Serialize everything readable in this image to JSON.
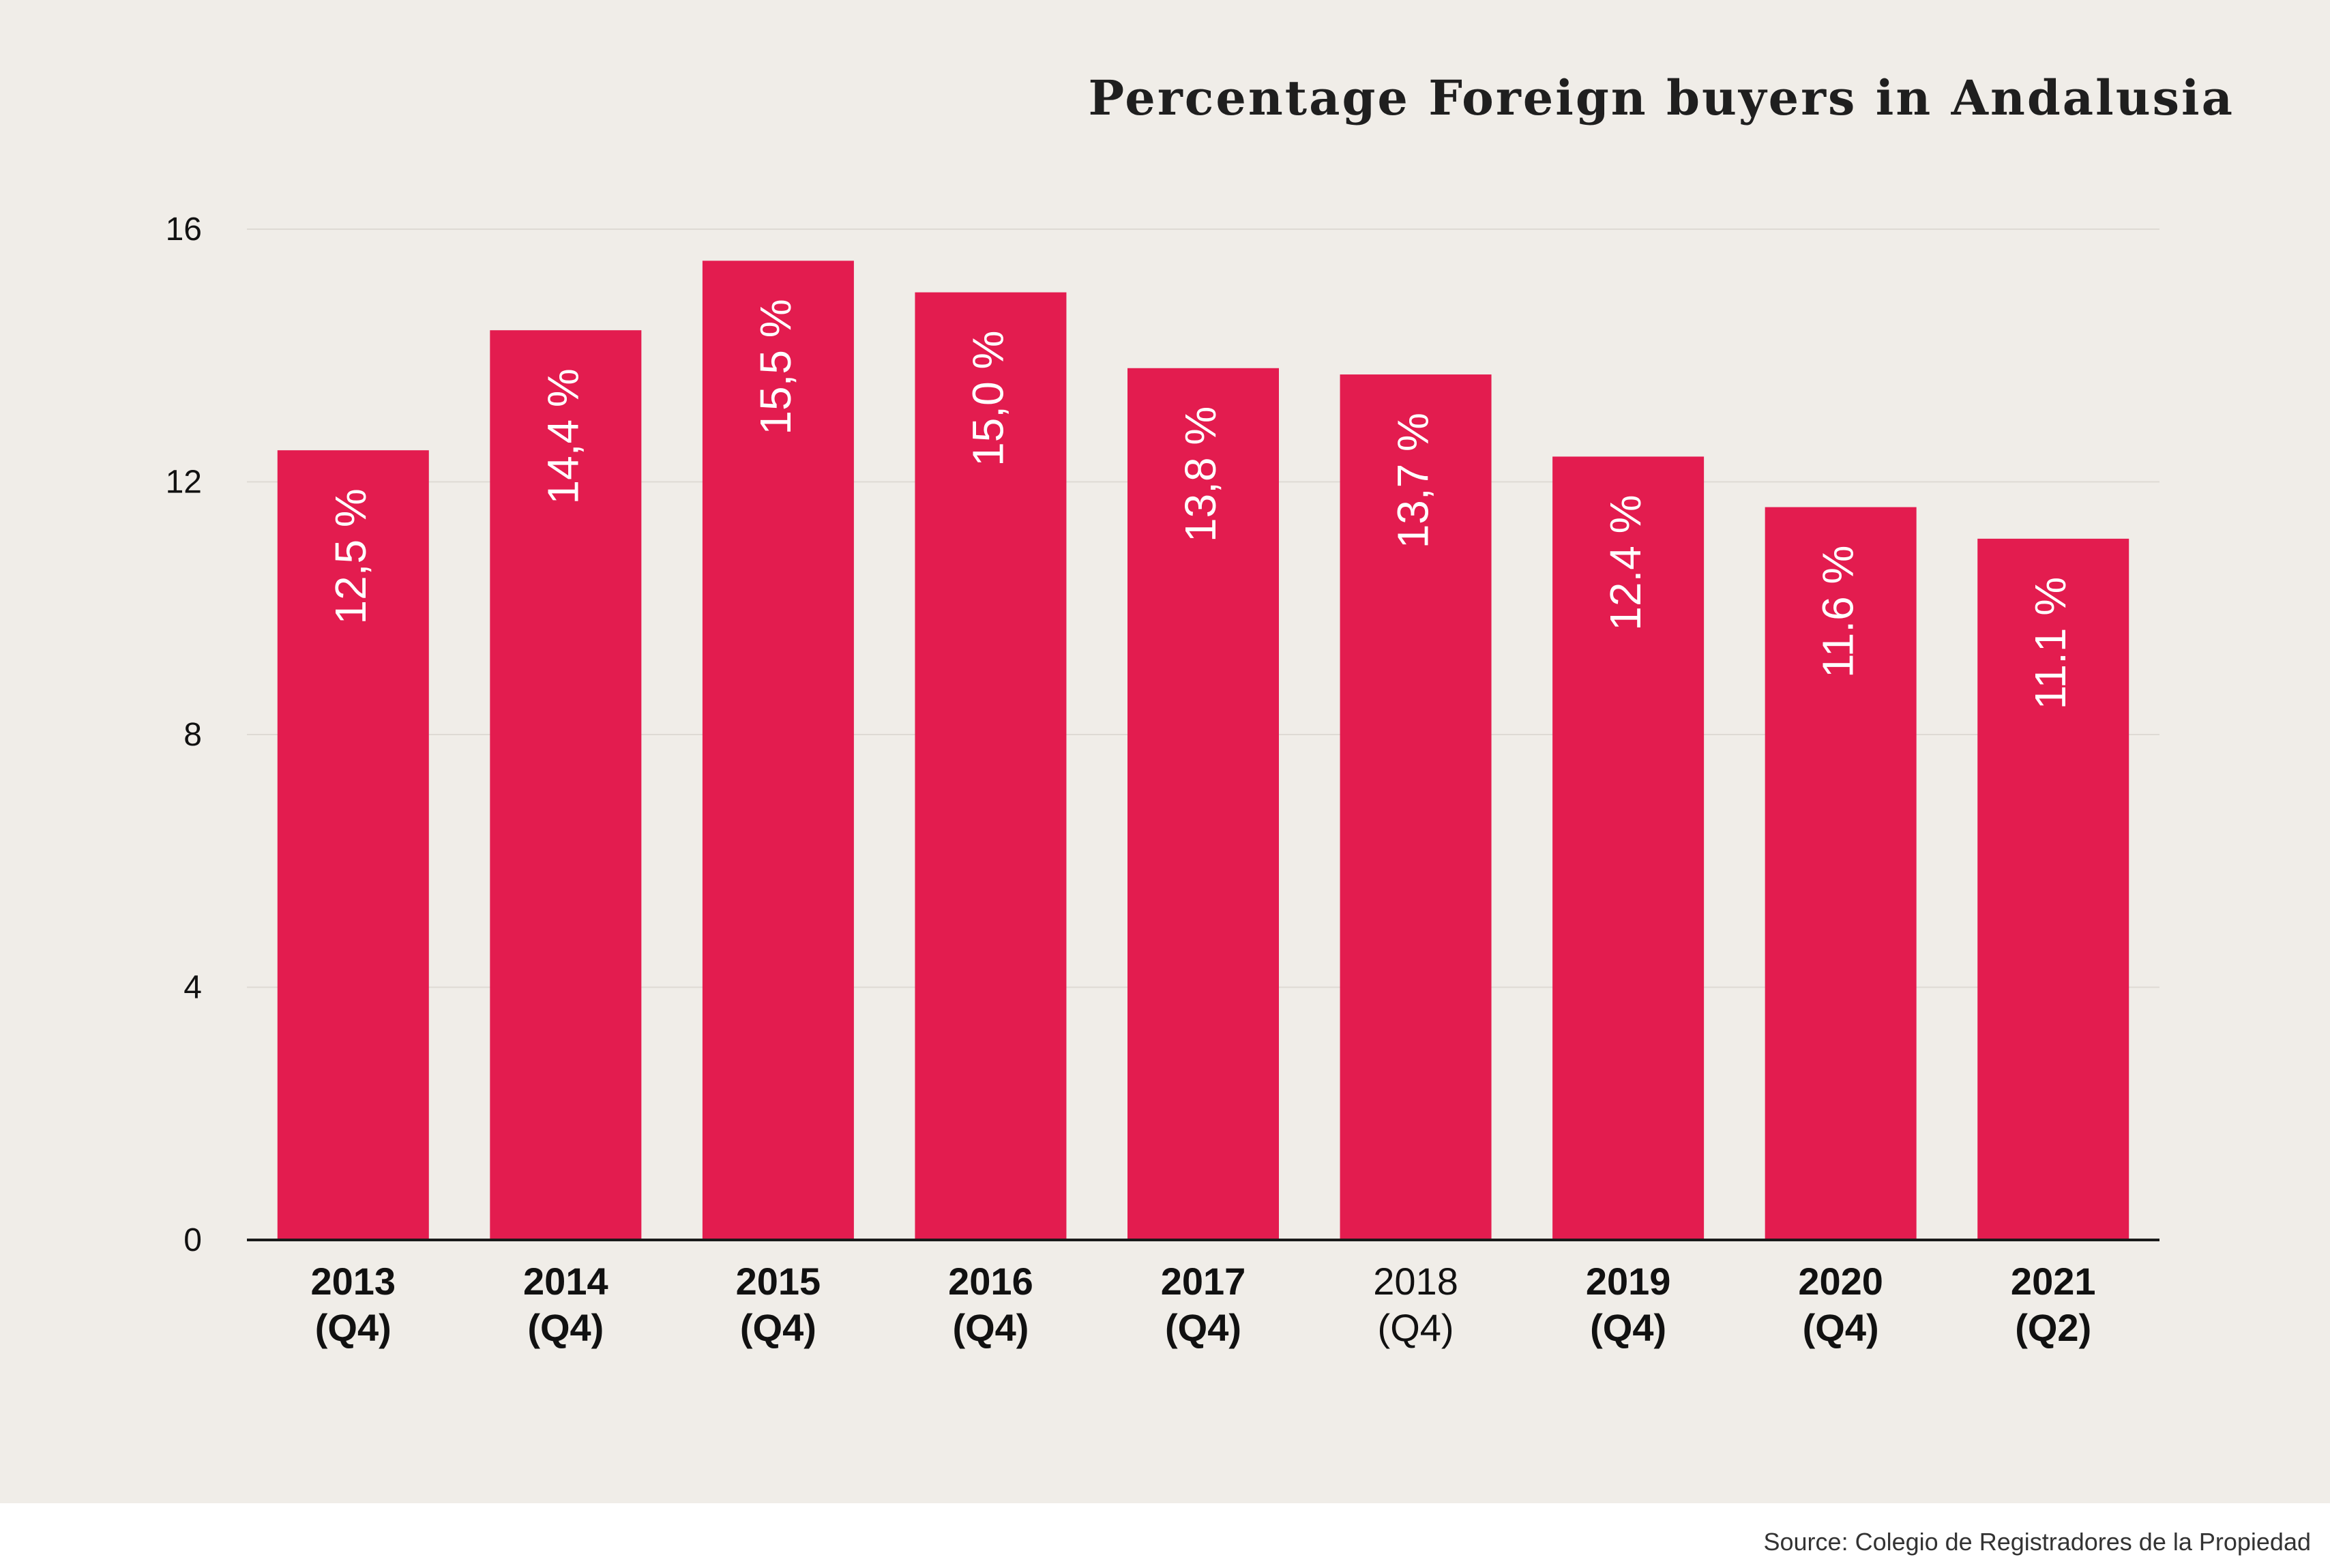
{
  "colors": {
    "background": "#f0ede8",
    "bar": "#e31c4f",
    "bar_label": "#ffffff",
    "grid": "#dedad4",
    "axis": "#1a1a1a",
    "text": "#111111"
  },
  "chart_data": {
    "type": "bar",
    "title": "Percentage Foreign buyers in Andalusia",
    "xlabel": "",
    "ylabel": "",
    "ylim": [
      0,
      16
    ],
    "yticks": [
      0,
      4,
      8,
      12,
      16
    ],
    "grid": true,
    "categories": [
      [
        "2013",
        "(Q4)"
      ],
      [
        "2014",
        "(Q4)"
      ],
      [
        "2015",
        "(Q4)"
      ],
      [
        "2016",
        "(Q4)"
      ],
      [
        "2017",
        "(Q4)"
      ],
      [
        "2018",
        "(Q4)"
      ],
      [
        "2019",
        "(Q4)"
      ],
      [
        "2020",
        "(Q4)"
      ],
      [
        "2021",
        "(Q2)"
      ]
    ],
    "values": [
      12.5,
      14.4,
      15.5,
      15.0,
      13.8,
      13.7,
      12.4,
      11.6,
      11.1
    ],
    "data_labels": [
      "12,5 %",
      "14,4 %",
      "15,5 %",
      "15,0 %",
      "13,8 %",
      "13,7 %",
      "12.4 %",
      "11.6 %",
      "11.1 %"
    ]
  },
  "source": "Source: Colegio de Registradores de la Propiedad"
}
